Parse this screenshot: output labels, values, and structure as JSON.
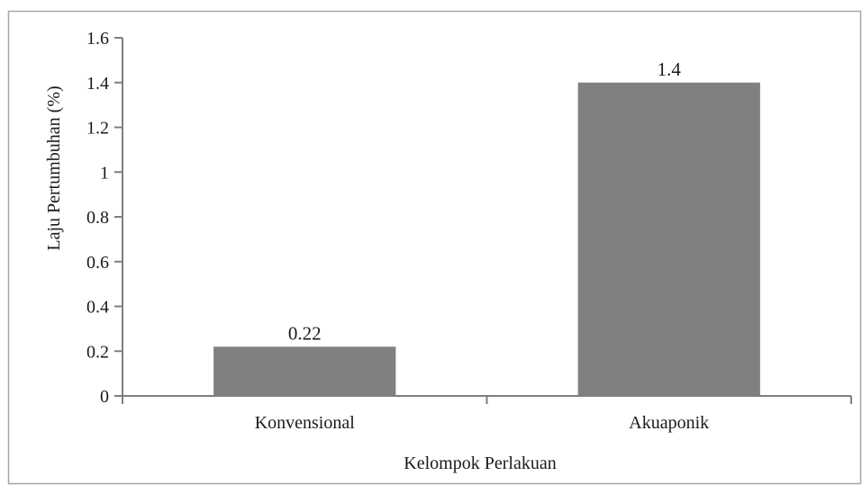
{
  "chart_data": {
    "type": "bar",
    "title": "",
    "xlabel": "Kelompok Perlakuan",
    "ylabel": "Laju Pertumbuhan (%)",
    "categories": [
      "Konvensional",
      "Akuaponik"
    ],
    "values": [
      0.22,
      1.4
    ],
    "data_labels": [
      "0.22",
      "1.4"
    ],
    "ylim": [
      0,
      1.6
    ],
    "yticks": [
      0,
      0.2,
      0.4,
      0.6,
      0.8,
      1,
      1.2,
      1.4,
      1.6
    ],
    "ytick_labels": [
      "0",
      "0.2",
      "0.4",
      "0.6",
      "0.8",
      "1",
      "1.2",
      "1.4",
      "1.6"
    ],
    "grid": false,
    "legend": "none",
    "bar_color": "#808080",
    "frame_color": "#a6a6a6",
    "axis_color": "#7f7f7f"
  }
}
